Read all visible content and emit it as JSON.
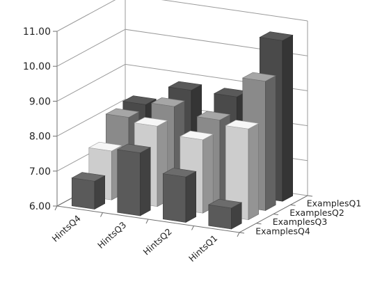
{
  "chart_data": {
    "type": "bar",
    "subtype": "3d-column",
    "title": "",
    "xlabel": "",
    "ylabel": "",
    "ylim": [
      6.0,
      11.0
    ],
    "y_ticks": [
      "6.00",
      "7.00",
      "8.00",
      "9.00",
      "10.00",
      "11.00"
    ],
    "grid": true,
    "legend": "none",
    "categories": [
      "HintsQ4",
      "HintsQ3",
      "HintsQ2",
      "HintsQ1"
    ],
    "series_labels": [
      "ExamplesQ1",
      "ExamplesQ2",
      "ExamplesQ3",
      "ExamplesQ4"
    ],
    "series": [
      {
        "values": [
          8.2,
          8.8,
          8.8,
          10.6
        ],
        "color": "#4a4a4a"
      },
      {
        "values": [
          8.1,
          8.6,
          8.4,
          9.7
        ],
        "color": "#8a8a8a"
      },
      {
        "values": [
          7.4,
          8.3,
          8.1,
          8.6
        ],
        "color": "#cdcdcd"
      },
      {
        "values": [
          6.8,
          7.8,
          7.3,
          6.6
        ],
        "color": "#5a5a5a"
      }
    ]
  }
}
